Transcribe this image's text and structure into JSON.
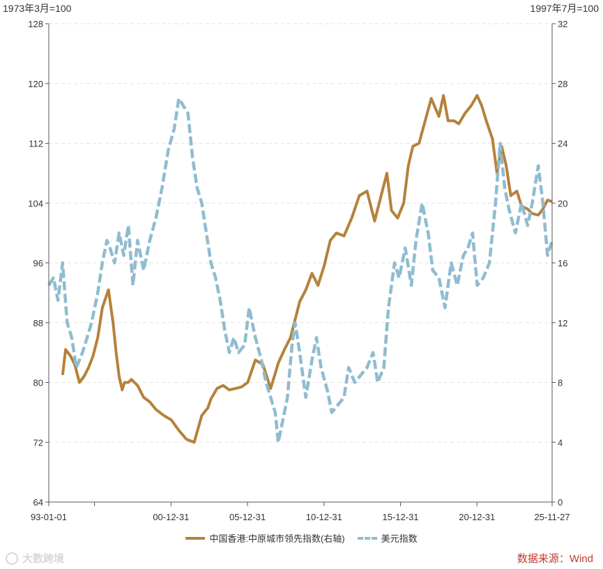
{
  "unit_left": "1973年3月=100",
  "unit_right": "1997年7月=100",
  "source": "数据来源：Wind",
  "watermark": "大数跨境",
  "colors": {
    "hk": "#b5813a",
    "usd": "#8fbcd0",
    "grid": "#e2e2e2",
    "axis": "#555555",
    "source": "#c0392b"
  },
  "chart_data": {
    "type": "line",
    "x_range": [
      1993.0,
      2025.9
    ],
    "x_ticks": [
      {
        "x": 1993.0,
        "label": "93-01-01"
      },
      {
        "x": 2000.99,
        "label": "00-12-31"
      },
      {
        "x": 2005.99,
        "label": "05-12-31"
      },
      {
        "x": 2010.99,
        "label": "10-12-31"
      },
      {
        "x": 2015.99,
        "label": "15-12-31"
      },
      {
        "x": 2020.99,
        "label": "20-12-31"
      },
      {
        "x": 2025.9,
        "label": "25-11-27"
      }
    ],
    "x_minor_ticks": [
      1995.99
    ],
    "y_left": {
      "range": [
        64,
        128
      ],
      "ticks": [
        64,
        72,
        80,
        88,
        96,
        104,
        112,
        120,
        128
      ]
    },
    "y_right": {
      "range": [
        0,
        32
      ],
      "ticks": [
        0,
        4,
        8,
        12,
        16,
        20,
        24,
        28,
        32
      ]
    },
    "grid": true,
    "legend_position": "bottom",
    "series": [
      {
        "name": "中国香港:中原城市领先指数(右轴)",
        "axis": "right",
        "style": "solid",
        "x": [
          1993.9,
          1994.1,
          1994.4,
          1994.7,
          1995.0,
          1995.3,
          1995.6,
          1995.9,
          1996.2,
          1996.5,
          1996.9,
          1997.2,
          1997.4,
          1997.6,
          1997.8,
          1997.95,
          1998.2,
          1998.4,
          1998.6,
          1998.8,
          1999.2,
          1999.6,
          2000.0,
          2000.5,
          2001.0,
          2001.5,
          2002.0,
          2002.5,
          2003.0,
          2003.4,
          2003.6,
          2004.0,
          2004.4,
          2004.8,
          2005.2,
          2005.6,
          2006.0,
          2006.5,
          2007.0,
          2007.5,
          2007.8,
          2008.0,
          2008.4,
          2008.8,
          2009.1,
          2009.4,
          2009.8,
          2010.2,
          2010.6,
          2011.0,
          2011.4,
          2011.8,
          2012.3,
          2012.8,
          2013.3,
          2013.8,
          2014.3,
          2014.8,
          2015.1,
          2015.4,
          2015.8,
          2016.2,
          2016.5,
          2016.8,
          2017.2,
          2017.6,
          2018.0,
          2018.5,
          2018.8,
          2019.1,
          2019.5,
          2019.8,
          2020.2,
          2020.6,
          2021.0,
          2021.3,
          2021.6,
          2022.0,
          2022.3,
          2022.6,
          2022.9,
          2023.2,
          2023.6,
          2023.9,
          2024.3,
          2024.6,
          2025.0,
          2025.3,
          2025.6,
          2025.9
        ],
        "y": [
          8.5,
          10.2,
          9.8,
          9.2,
          8.0,
          8.4,
          9.0,
          9.8,
          11.0,
          13.0,
          14.2,
          12.0,
          10.0,
          8.4,
          7.5,
          8.0,
          8.0,
          8.2,
          8.0,
          7.8,
          7.0,
          6.7,
          6.2,
          5.8,
          5.5,
          4.8,
          4.2,
          4.0,
          5.8,
          6.3,
          6.9,
          7.6,
          7.8,
          7.5,
          7.6,
          7.7,
          8.0,
          9.5,
          9.2,
          7.6,
          8.6,
          9.3,
          10.2,
          11.0,
          12.2,
          13.4,
          14.2,
          15.3,
          14.5,
          15.8,
          17.5,
          18.0,
          17.8,
          19.0,
          20.5,
          20.8,
          18.8,
          20.8,
          22.0,
          19.5,
          19.0,
          20.0,
          22.5,
          23.8,
          24.0,
          25.5,
          27.0,
          25.8,
          27.2,
          25.5,
          25.5,
          25.3,
          26.0,
          26.5,
          27.2,
          26.5,
          25.5,
          24.3,
          22.0,
          23.8,
          22.5,
          20.5,
          20.8,
          19.8,
          19.6,
          19.3,
          19.2,
          19.6,
          20.2,
          20.1
        ]
      },
      {
        "name": "美元指数",
        "axis": "left",
        "style": "dashed",
        "x": [
          1993.0,
          1993.3,
          1993.6,
          1993.9,
          1994.2,
          1994.5,
          1994.8,
          1995.2,
          1995.5,
          1995.8,
          1996.2,
          1996.5,
          1996.8,
          1997.0,
          1997.3,
          1997.6,
          1997.9,
          1998.2,
          1998.5,
          1998.8,
          1999.2,
          1999.6,
          2000.0,
          2000.4,
          2000.8,
          2001.2,
          2001.5,
          2001.8,
          2002.1,
          2002.4,
          2002.7,
          2003.0,
          2003.3,
          2003.6,
          2003.9,
          2004.2,
          2004.5,
          2004.8,
          2005.1,
          2005.4,
          2005.8,
          2006.1,
          2006.5,
          2006.9,
          2007.2,
          2007.5,
          2007.8,
          2008.0,
          2008.3,
          2008.6,
          2008.9,
          2009.1,
          2009.4,
          2009.8,
          2010.2,
          2010.5,
          2010.8,
          2011.2,
          2011.5,
          2011.9,
          2012.3,
          2012.6,
          2013.0,
          2013.4,
          2013.8,
          2014.2,
          2014.5,
          2014.9,
          2015.2,
          2015.6,
          2015.9,
          2016.3,
          2016.7,
          2017.0,
          2017.4,
          2017.8,
          2018.1,
          2018.5,
          2018.9,
          2019.3,
          2019.7,
          2020.1,
          2020.4,
          2020.7,
          2021.0,
          2021.4,
          2021.8,
          2022.2,
          2022.5,
          2022.8,
          2023.1,
          2023.5,
          2023.9,
          2024.3,
          2024.6,
          2025.0,
          2025.3,
          2025.6,
          2025.9
        ],
        "y": [
          93,
          94,
          91,
          96,
          88,
          86,
          82,
          84,
          86,
          88,
          92,
          96,
          99,
          98,
          96,
          100,
          97,
          101,
          93,
          99,
          95,
          99,
          102,
          106,
          111,
          114,
          118,
          117,
          116,
          110,
          106,
          104,
          100,
          96,
          94,
          91,
          87,
          84,
          86,
          84,
          85,
          90,
          86,
          83,
          80,
          78,
          76,
          72,
          75,
          78,
          85,
          88,
          84,
          78,
          83,
          86,
          82,
          79,
          76,
          77,
          78,
          82,
          80,
          81,
          82,
          84,
          80,
          82,
          90,
          96,
          94,
          98,
          93,
          99,
          104,
          100,
          95,
          94,
          90,
          96,
          93,
          97,
          98,
          100,
          93,
          94,
          96,
          104,
          112,
          106,
          103,
          100,
          104,
          101,
          104,
          109,
          104,
          97,
          99
        ]
      }
    ]
  }
}
